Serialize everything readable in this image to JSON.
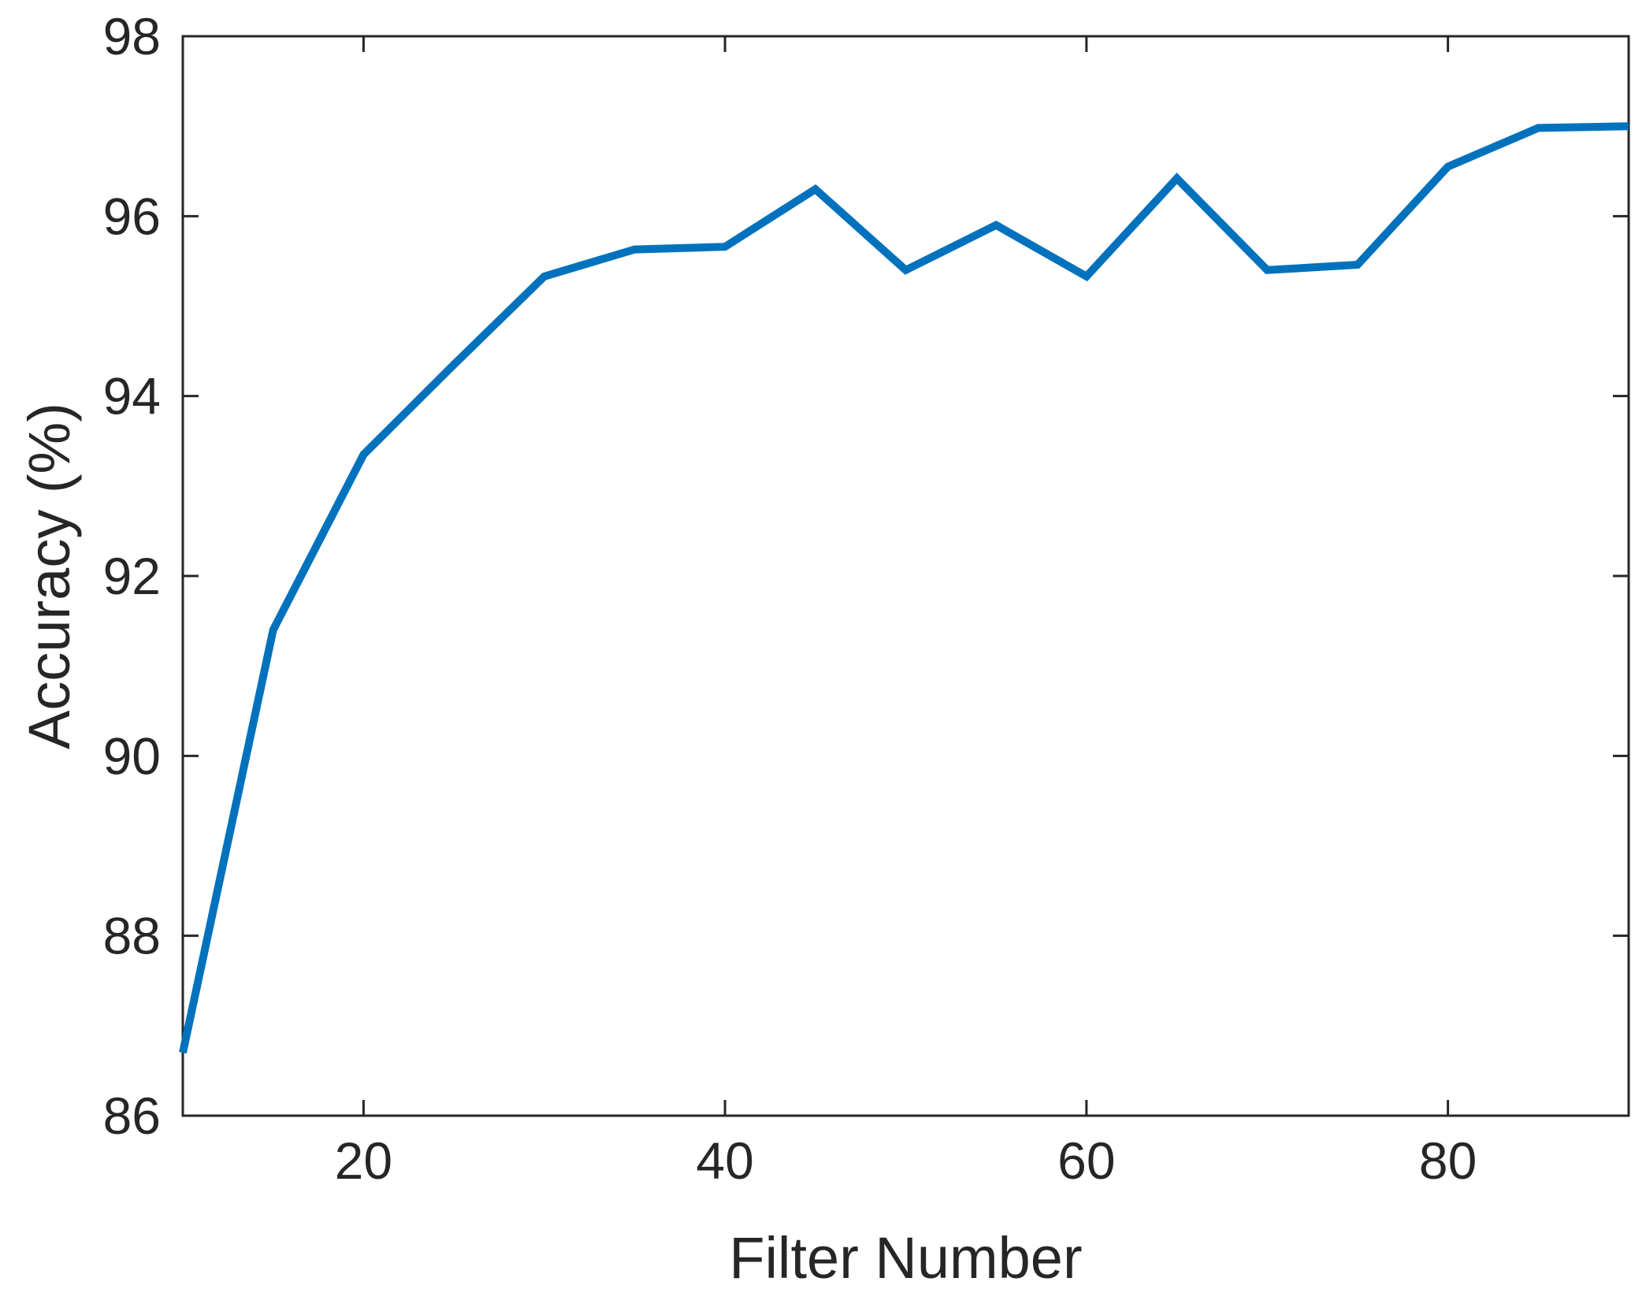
{
  "chart_data": {
    "type": "line",
    "xlabel": "Filter Number",
    "ylabel": "Accuracy (%)",
    "xlim": [
      10,
      90
    ],
    "ylim": [
      86,
      98
    ],
    "xticks": [
      20,
      40,
      60,
      80
    ],
    "yticks": [
      86,
      88,
      90,
      92,
      94,
      96,
      98
    ],
    "grid": false,
    "box": true,
    "series": [
      {
        "color": "#0072bd",
        "x": [
          10,
          15,
          20,
          25,
          30,
          35,
          40,
          45,
          50,
          55,
          60,
          65,
          70,
          75,
          80,
          85,
          90
        ],
        "y": [
          86.7,
          91.4,
          93.35,
          94.35,
          95.33,
          95.63,
          95.66,
          96.3,
          95.4,
          95.9,
          95.33,
          96.42,
          95.4,
          95.46,
          96.55,
          96.98,
          97.0
        ]
      }
    ]
  }
}
